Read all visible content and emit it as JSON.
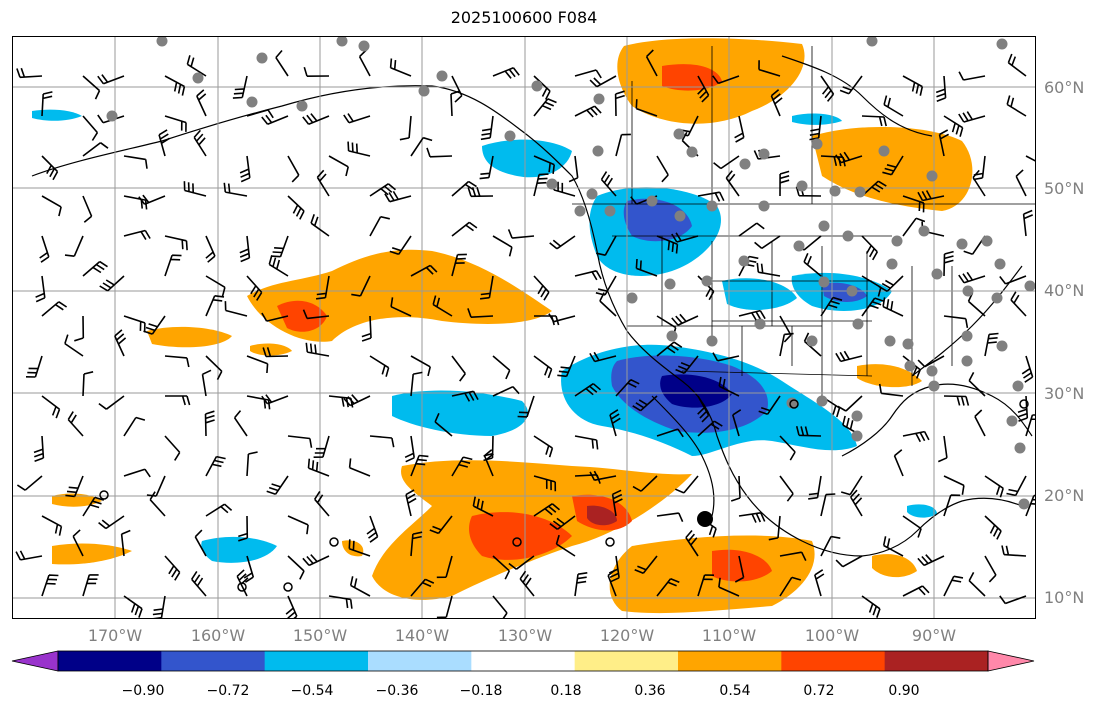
{
  "title": "2025100600 F084",
  "map": {
    "lat_labels": [
      "60°N",
      "50°N",
      "40°N",
      "30°N",
      "20°N",
      "10°N"
    ],
    "lon_labels": [
      "170°W",
      "160°W",
      "150°W",
      "140°W",
      "130°W",
      "120°W",
      "110°W",
      "100°W",
      "90°W"
    ],
    "grid": true,
    "colors": {
      "land_outline": "#000000",
      "gridline": "#9a9a9a",
      "station_dot": "#808080"
    }
  },
  "colorbar": {
    "tick_labels": [
      "−0.90",
      "−0.72",
      "−0.54",
      "−0.36",
      "−0.18",
      "0.18",
      "0.36",
      "0.54",
      "0.72",
      "0.90"
    ],
    "colors": [
      "#9933cc",
      "#000088",
      "#3355cc",
      "#00bbee",
      "#aaddff",
      "#ffffff",
      "#ffee88",
      "#ffa500",
      "#ff4400",
      "#aa2222",
      "#ff88aa"
    ],
    "extend": "both"
  }
}
